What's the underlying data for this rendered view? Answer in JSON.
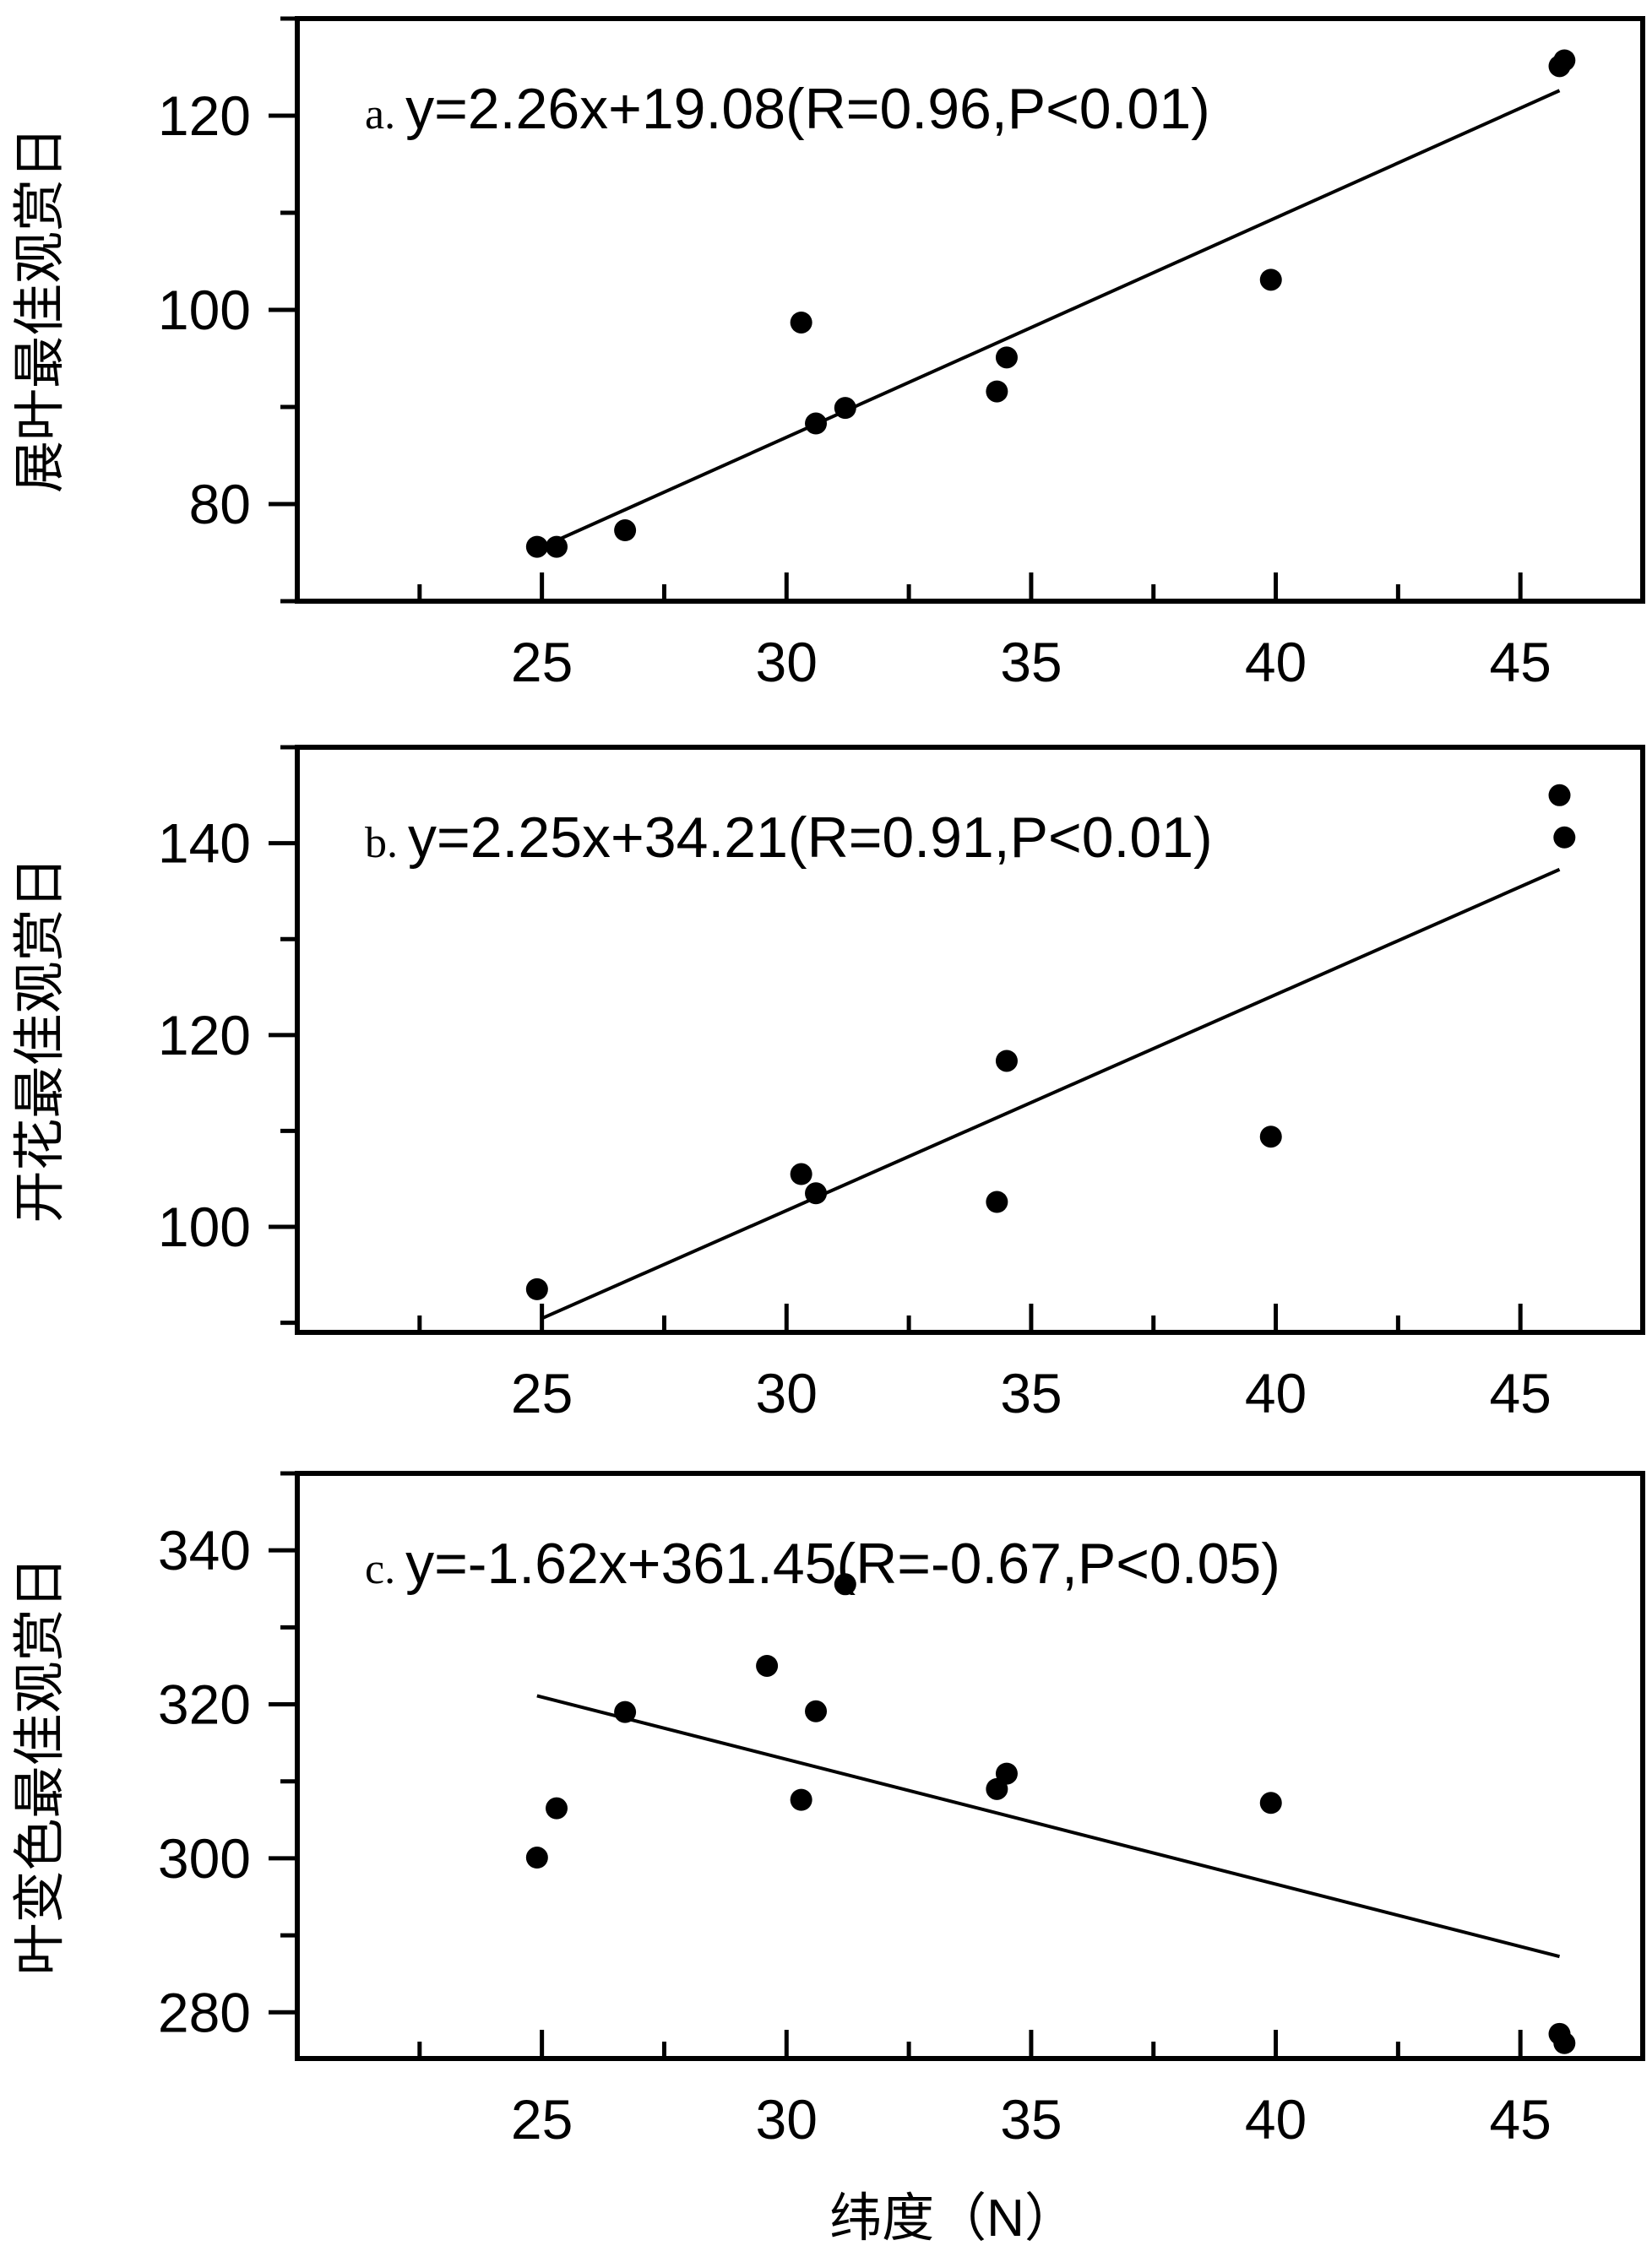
{
  "chart_data": [
    {
      "type": "scatter",
      "panel_label": "a.",
      "annotation": "y=2.26x+19.08(R=0.96,P<0.01)",
      "ylabel": "展叶最佳观赏日",
      "xlabel": "",
      "xlim": [
        20,
        47.5
      ],
      "ylim": [
        70,
        130
      ],
      "xticks": [
        25,
        30,
        35,
        40,
        45
      ],
      "yticks": [
        80,
        100,
        120
      ],
      "fit": {
        "slope": 2.26,
        "intercept": 19.08,
        "x_range": [
          25.3,
          45.8
        ]
      },
      "points": [
        {
          "x": 24.9,
          "y": 75.6
        },
        {
          "x": 25.3,
          "y": 75.6
        },
        {
          "x": 26.7,
          "y": 77.3
        },
        {
          "x": 30.3,
          "y": 98.7
        },
        {
          "x": 30.6,
          "y": 88.3
        },
        {
          "x": 31.2,
          "y": 89.9
        },
        {
          "x": 34.3,
          "y": 91.6
        },
        {
          "x": 34.5,
          "y": 95.1
        },
        {
          "x": 39.9,
          "y": 103.1
        },
        {
          "x": 45.8,
          "y": 125.1
        },
        {
          "x": 45.9,
          "y": 125.7
        }
      ]
    },
    {
      "type": "scatter",
      "panel_label": "b.",
      "annotation": "y=2.25x+34.21(R=0.91,P<0.01)",
      "ylabel": "开花最佳观赏日",
      "xlabel": "",
      "xlim": [
        20,
        47.5
      ],
      "ylim": [
        89,
        150
      ],
      "xticks": [
        25,
        30,
        35,
        40,
        45
      ],
      "yticks": [
        100,
        120,
        140
      ],
      "fit": {
        "slope": 2.25,
        "intercept": 34.21,
        "x_range": [
          25.0,
          45.8
        ]
      },
      "points": [
        {
          "x": 24.9,
          "y": 93.5
        },
        {
          "x": 30.3,
          "y": 105.5
        },
        {
          "x": 30.6,
          "y": 103.5
        },
        {
          "x": 34.3,
          "y": 102.6
        },
        {
          "x": 34.5,
          "y": 117.3
        },
        {
          "x": 39.9,
          "y": 109.4
        },
        {
          "x": 45.8,
          "y": 145.0
        },
        {
          "x": 45.9,
          "y": 140.6
        }
      ]
    },
    {
      "type": "scatter",
      "panel_label": "c.",
      "annotation": "y=-1.62x+361.45(R=-0.67,P<0.05)",
      "ylabel": "叶变色最佳观赏日",
      "xlabel": "纬度（N）",
      "xlim": [
        20,
        47.5
      ],
      "ylim": [
        274,
        350
      ],
      "xticks": [
        25,
        30,
        35,
        40,
        45
      ],
      "yticks": [
        280,
        300,
        320,
        340
      ],
      "fit": {
        "slope": -1.62,
        "intercept": 361.45,
        "x_range": [
          24.9,
          45.8
        ]
      },
      "points": [
        {
          "x": 24.9,
          "y": 300.1
        },
        {
          "x": 25.3,
          "y": 306.5
        },
        {
          "x": 26.7,
          "y": 319.0
        },
        {
          "x": 29.6,
          "y": 325.0
        },
        {
          "x": 30.3,
          "y": 307.6
        },
        {
          "x": 30.6,
          "y": 319.1
        },
        {
          "x": 31.2,
          "y": 335.6
        },
        {
          "x": 34.3,
          "y": 309.0
        },
        {
          "x": 34.5,
          "y": 311.0
        },
        {
          "x": 39.9,
          "y": 307.2
        },
        {
          "x": 45.8,
          "y": 277.2
        },
        {
          "x": 45.9,
          "y": 276.0
        }
      ]
    }
  ]
}
